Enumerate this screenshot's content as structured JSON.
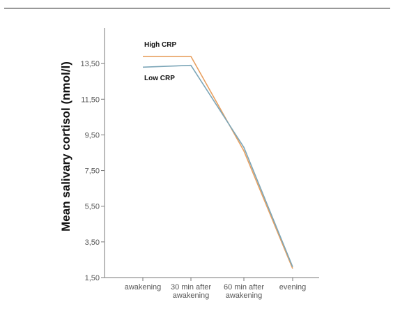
{
  "chart_data": {
    "type": "line",
    "title": "",
    "xlabel": "",
    "ylabel": "Mean salivary cortisol (nmol/l)",
    "categories": [
      [
        "awakening"
      ],
      [
        "30 min after",
        "awakening"
      ],
      [
        "60 min after",
        "awakening"
      ],
      [
        "evening"
      ]
    ],
    "yticks": [
      1.5,
      3.5,
      5.5,
      7.5,
      9.5,
      11.5,
      13.5
    ],
    "ytick_labels": [
      "1,50",
      "3,50",
      "5,50",
      "7,50",
      "9,50",
      "11,50",
      "13,50"
    ],
    "ylim": [
      1.5,
      15.5
    ],
    "grid": false,
    "legend": "none",
    "series": [
      {
        "name": "High CRP",
        "values": [
          13.9,
          13.9,
          8.6,
          2.0
        ],
        "color": "#e8a060"
      },
      {
        "name": "Low CRP",
        "values": [
          13.3,
          13.4,
          8.8,
          2.1
        ],
        "color": "#7ca6b8"
      }
    ],
    "header_rule_color": "#999999",
    "axis_color": "#777777"
  }
}
